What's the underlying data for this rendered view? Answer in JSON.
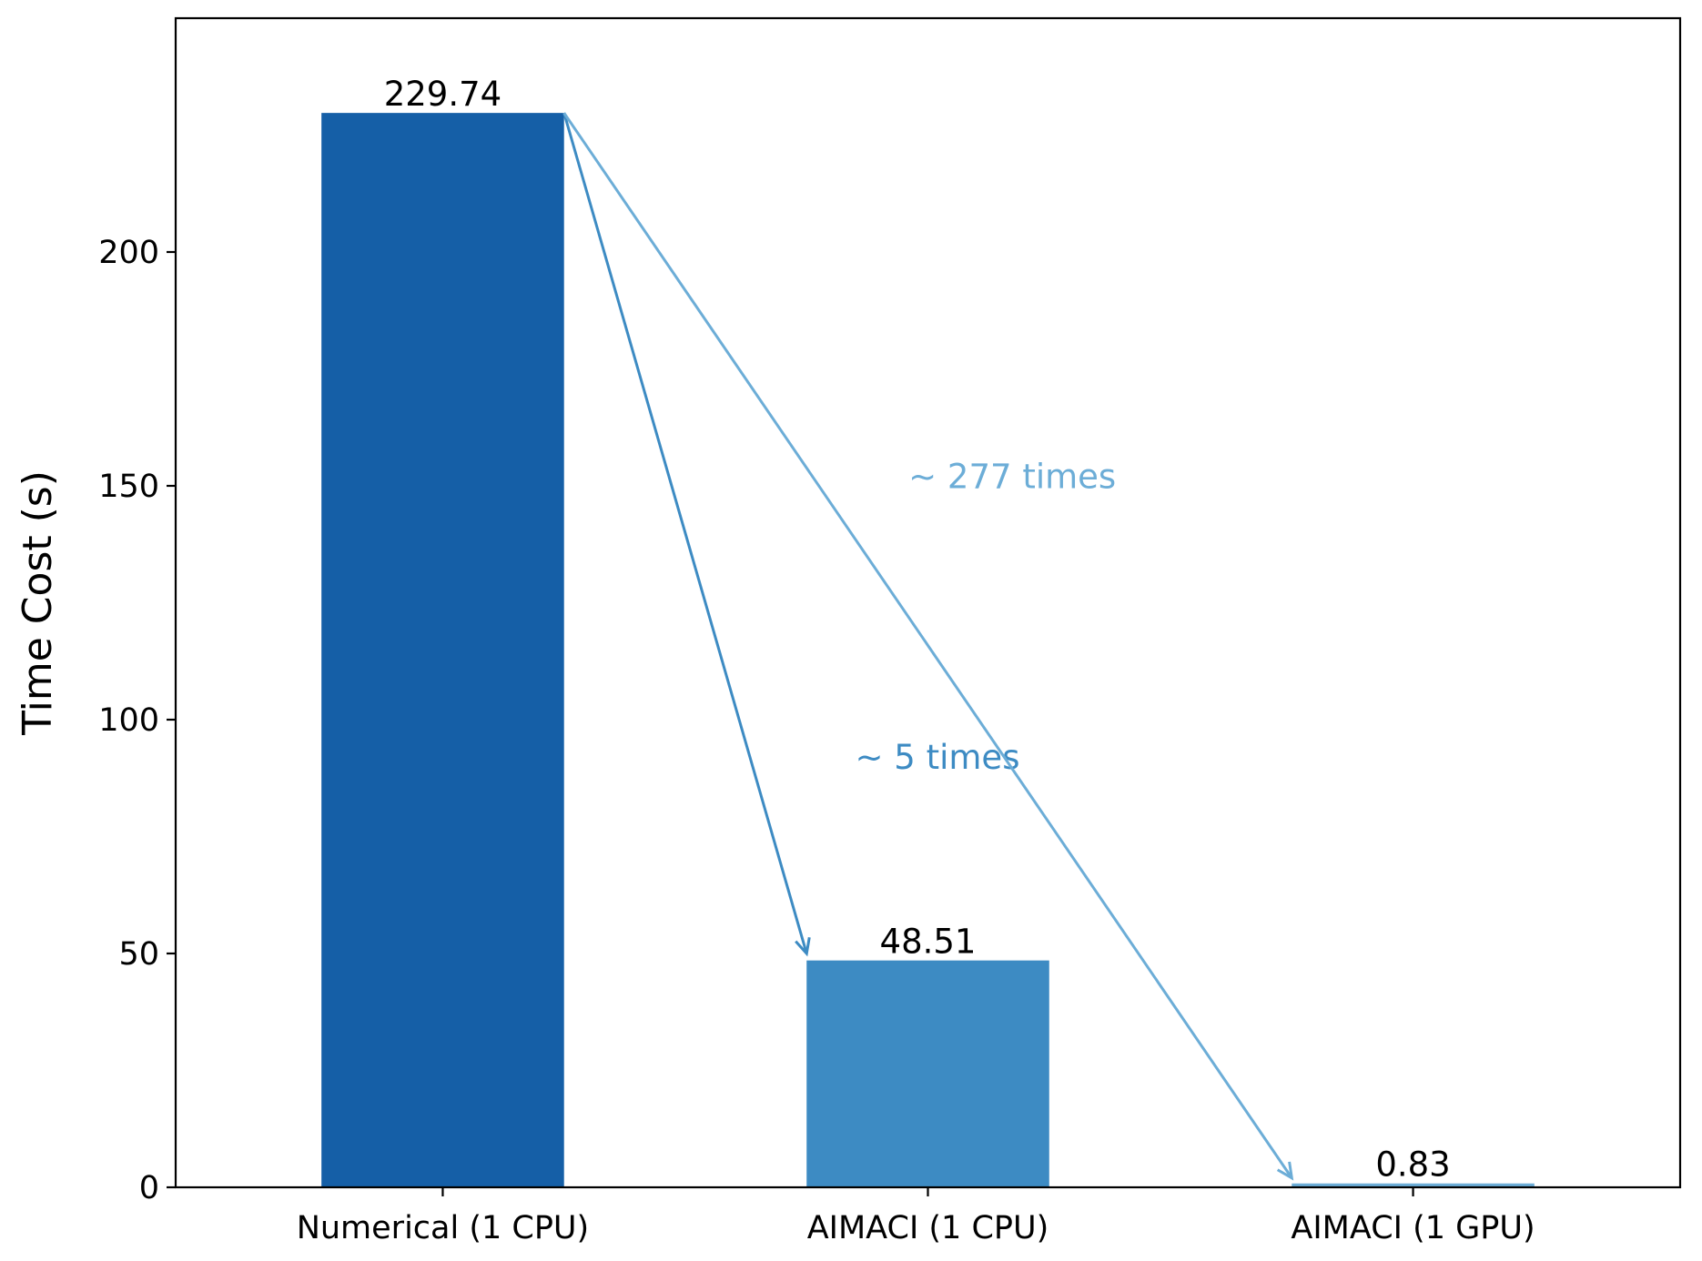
{
  "chart_data": {
    "type": "bar",
    "categories": [
      "Numerical (1 CPU)",
      "AIMACI (1 CPU)",
      "AIMACI (1 GPU)"
    ],
    "values": [
      229.74,
      48.51,
      0.83
    ],
    "value_labels": [
      "229.74",
      "48.51",
      "0.83"
    ],
    "colors": [
      "#155fa7",
      "#3d8bc3",
      "#6cadd7"
    ],
    "title": "",
    "xlabel": "",
    "ylabel": "Time Cost (s)",
    "ylim": [
      0,
      250
    ],
    "yticks": [
      0,
      50,
      100,
      150,
      200
    ],
    "grid": false,
    "legend": "none",
    "annotations": [
      {
        "text": "~ 5 times",
        "from_category": 0,
        "from_value": 229.74,
        "to_category": 1,
        "to_value": 50,
        "color": "#3d8bc3",
        "text_category": 0.85,
        "text_value": 92
      },
      {
        "text": "~ 277 times",
        "from_category": 0,
        "from_value": 229.74,
        "to_category": 2,
        "to_value": 2,
        "color": "#6cadd7",
        "text_category": 0.96,
        "text_value": 152
      }
    ]
  }
}
